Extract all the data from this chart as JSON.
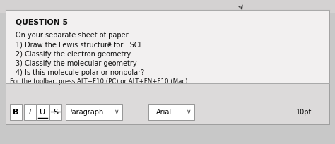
{
  "bg_outer": "#c8c8c8",
  "bg_top_strip": "#e0dede",
  "panel_color": "#e8e6e6",
  "toolbar_color": "#d0cece",
  "title": "QUESTION 5",
  "line1": "On your separate sheet of paper",
  "line2_prefix": "1) Draw the Lewis structure for:  SCl",
  "line2_subscript": "2",
  "line3": "2) Classify the electron geometry",
  "line4": "3) Classify the molecular geometry",
  "line5": "4) Is this molecule polar or nonpolar?",
  "line6": "For the toolbar, press ALT+F10 (PC) or ALT+FN+F10 (Mac).",
  "toolbar_items": [
    "B",
    "I",
    "U",
    "S"
  ],
  "toolbar_paragraph": "Paragraph",
  "toolbar_font": "Arial",
  "toolbar_size": "10pt"
}
